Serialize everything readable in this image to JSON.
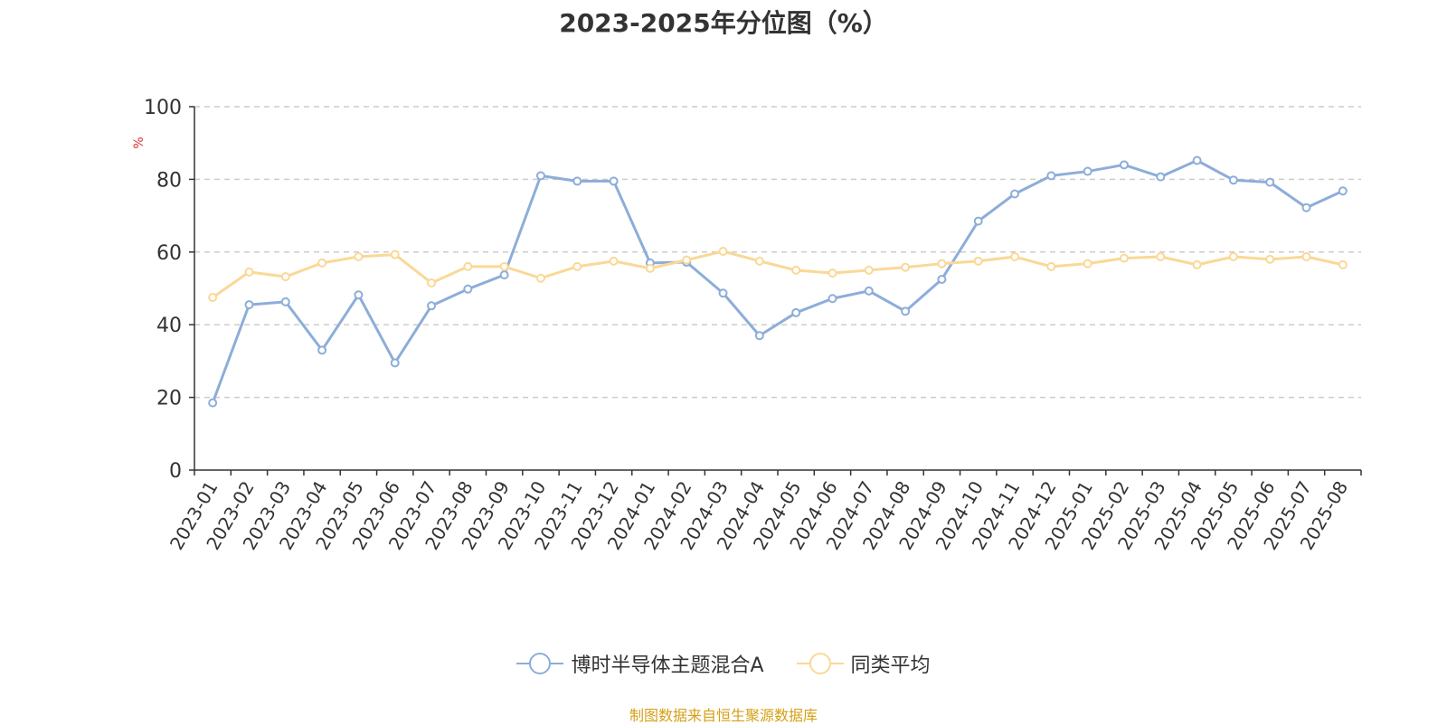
{
  "chart_data": {
    "type": "line",
    "title": "2023-2025年分位图（%）",
    "ylabel": "%",
    "xlabel": "",
    "ylim": [
      0,
      100
    ],
    "yticks": [
      0,
      20,
      40,
      60,
      80,
      100
    ],
    "grid": true,
    "legend_position": "bottom-center",
    "categories": [
      "2023-01",
      "2023-02",
      "2023-03",
      "2023-04",
      "2023-05",
      "2023-06",
      "2023-07",
      "2023-08",
      "2023-09",
      "2023-10",
      "2023-11",
      "2023-12",
      "2024-01",
      "2024-02",
      "2024-03",
      "2024-04",
      "2024-05",
      "2024-06",
      "2024-07",
      "2024-08",
      "2024-09",
      "2024-10",
      "2024-11",
      "2024-12",
      "2025-01",
      "2025-02",
      "2025-03",
      "2025-04",
      "2025-05",
      "2025-06",
      "2025-07",
      "2025-08"
    ],
    "series": [
      {
        "name": "博时半导体主题混合A",
        "color": "#8dadd9",
        "values": [
          18.5,
          45.5,
          46.3,
          33.0,
          48.2,
          29.5,
          45.2,
          49.8,
          53.7,
          81.0,
          79.5,
          79.5,
          57.0,
          57.2,
          48.7,
          37.0,
          43.3,
          47.2,
          49.3,
          43.7,
          52.5,
          68.5,
          76.0,
          81.0,
          82.2,
          84.0,
          80.7,
          85.2,
          79.8,
          79.2,
          72.2,
          76.8
        ]
      },
      {
        "name": "同类平均",
        "color": "#fad896",
        "values": [
          47.5,
          54.5,
          53.2,
          57.0,
          58.7,
          59.3,
          51.5,
          56.0,
          56.0,
          52.8,
          56.0,
          57.5,
          55.5,
          57.8,
          60.2,
          57.5,
          55.0,
          54.2,
          55.0,
          55.8,
          56.8,
          57.5,
          58.7,
          56.0,
          56.8,
          58.3,
          58.7,
          56.5,
          58.7,
          58.0,
          58.7,
          56.5
        ]
      }
    ]
  },
  "source": "制图数据来自恒生聚源数据库"
}
